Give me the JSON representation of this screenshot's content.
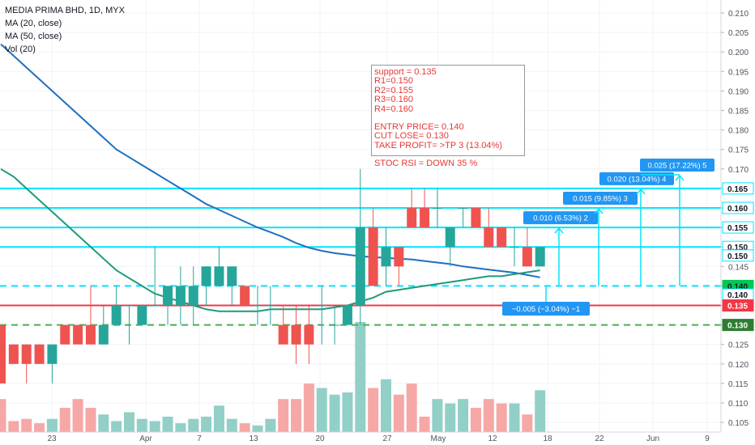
{
  "legend": {
    "title": "MEDIA PRIMA BHD, 1D, MYX",
    "ma20": "MA (20, close)",
    "ma50": "MA (50, close)",
    "vol": "Vol (20)"
  },
  "note": {
    "support": "support = 0.135",
    "r1": "R1=0.150",
    "r2": "R2=0.155",
    "r3": "R3=0.160",
    "r4": "R4=0.160",
    "entry": "ENTRY PRICE= 0.140",
    "cut": "CUT LOSE= 0.130",
    "take": "TAKE PROFIT= >TP 3 (13.04%)",
    "stoc": "STOC RSI = DOWN 35 %"
  },
  "colors": {
    "up": "#26a69a",
    "down": "#ef5350",
    "vol_up": "#92cfc7",
    "vol_down": "#f5a8a6",
    "ma20": "#1e9a7a",
    "ma50": "#1f6fbf",
    "resistance": "#00e5ff",
    "support": "#f23645",
    "stop": "#4caf50",
    "label_blue": "#2196f3"
  },
  "chart_data": {
    "type": "candlestick",
    "symbol": "MEDIA PRIMA BHD",
    "interval": "1D",
    "exchange": "MYX",
    "ylim": [
      0.1,
      0.212
    ],
    "y_ticks": [
      "0.105",
      "0.110",
      "0.115",
      "0.120",
      "0.125",
      "0.130",
      "0.135",
      "0.140",
      "0.145",
      "0.150",
      "0.155",
      "0.160",
      "0.165",
      "0.170",
      "0.175",
      "0.180",
      "0.185",
      "0.190",
      "0.195",
      "0.200",
      "0.205",
      "0.210"
    ],
    "x_ticks": [
      "23",
      "Apr",
      "7",
      "13",
      "20",
      "27",
      "May",
      "12",
      "18",
      "22",
      "Jun",
      "9"
    ],
    "candles": [
      {
        "o": 0.13,
        "h": 0.13,
        "l": 0.115,
        "c": 0.115
      },
      {
        "o": 0.125,
        "h": 0.125,
        "l": 0.12,
        "c": 0.12
      },
      {
        "o": 0.125,
        "h": 0.125,
        "l": 0.115,
        "c": 0.12
      },
      {
        "o": 0.125,
        "h": 0.125,
        "l": 0.12,
        "c": 0.12
      },
      {
        "o": 0.12,
        "h": 0.125,
        "l": 0.115,
        "c": 0.125
      },
      {
        "o": 0.13,
        "h": 0.13,
        "l": 0.125,
        "c": 0.125
      },
      {
        "o": 0.13,
        "h": 0.13,
        "l": 0.125,
        "c": 0.125
      },
      {
        "o": 0.13,
        "h": 0.14,
        "l": 0.125,
        "c": 0.125
      },
      {
        "o": 0.125,
        "h": 0.135,
        "l": 0.125,
        "c": 0.13
      },
      {
        "o": 0.13,
        "h": 0.14,
        "l": 0.13,
        "c": 0.135
      },
      {
        "o": 0.135,
        "h": 0.135,
        "l": 0.125,
        "c": 0.135
      },
      {
        "o": 0.13,
        "h": 0.135,
        "l": 0.13,
        "c": 0.135
      },
      {
        "o": 0.135,
        "h": 0.15,
        "l": 0.135,
        "c": 0.135
      },
      {
        "o": 0.135,
        "h": 0.14,
        "l": 0.13,
        "c": 0.14
      },
      {
        "o": 0.135,
        "h": 0.145,
        "l": 0.13,
        "c": 0.14
      },
      {
        "o": 0.135,
        "h": 0.145,
        "l": 0.13,
        "c": 0.14
      },
      {
        "o": 0.14,
        "h": 0.145,
        "l": 0.135,
        "c": 0.145
      },
      {
        "o": 0.14,
        "h": 0.15,
        "l": 0.14,
        "c": 0.145
      },
      {
        "o": 0.14,
        "h": 0.145,
        "l": 0.135,
        "c": 0.145
      },
      {
        "o": 0.14,
        "h": 0.14,
        "l": 0.135,
        "c": 0.135
      },
      {
        "o": 0.135,
        "h": 0.14,
        "l": 0.13,
        "c": 0.135
      },
      {
        "o": 0.135,
        "h": 0.14,
        "l": 0.13,
        "c": 0.135
      },
      {
        "o": 0.13,
        "h": 0.135,
        "l": 0.125,
        "c": 0.125
      },
      {
        "o": 0.13,
        "h": 0.135,
        "l": 0.12,
        "c": 0.125
      },
      {
        "o": 0.13,
        "h": 0.135,
        "l": 0.12,
        "c": 0.125
      },
      {
        "o": 0.135,
        "h": 0.14,
        "l": 0.125,
        "c": 0.135
      },
      {
        "o": 0.13,
        "h": 0.135,
        "l": 0.125,
        "c": 0.13
      },
      {
        "o": 0.13,
        "h": 0.135,
        "l": 0.13,
        "c": 0.135
      },
      {
        "o": 0.135,
        "h": 0.17,
        "l": 0.13,
        "c": 0.155
      },
      {
        "o": 0.155,
        "h": 0.16,
        "l": 0.14,
        "c": 0.14
      },
      {
        "o": 0.145,
        "h": 0.155,
        "l": 0.14,
        "c": 0.15
      },
      {
        "o": 0.15,
        "h": 0.15,
        "l": 0.14,
        "c": 0.145
      },
      {
        "o": 0.16,
        "h": 0.165,
        "l": 0.155,
        "c": 0.155
      },
      {
        "o": 0.16,
        "h": 0.165,
        "l": 0.155,
        "c": 0.155
      },
      {
        "o": 0.16,
        "h": 0.165,
        "l": 0.155,
        "c": 0.16
      },
      {
        "o": 0.15,
        "h": 0.155,
        "l": 0.145,
        "c": 0.155
      },
      {
        "o": 0.16,
        "h": 0.16,
        "l": 0.155,
        "c": 0.16
      },
      {
        "o": 0.16,
        "h": 0.16,
        "l": 0.155,
        "c": 0.155
      },
      {
        "o": 0.155,
        "h": 0.16,
        "l": 0.15,
        "c": 0.15
      },
      {
        "o": 0.155,
        "h": 0.155,
        "l": 0.15,
        "c": 0.15
      },
      {
        "o": 0.15,
        "h": 0.155,
        "l": 0.145,
        "c": 0.15
      },
      {
        "o": 0.15,
        "h": 0.155,
        "l": 0.145,
        "c": 0.145
      },
      {
        "o": 0.145,
        "h": 0.15,
        "l": 0.145,
        "c": 0.15
      }
    ],
    "volume_relative": [
      0.3,
      0.1,
      0.12,
      0.08,
      0.12,
      0.22,
      0.3,
      0.22,
      0.16,
      0.1,
      0.18,
      0.12,
      0.1,
      0.14,
      0.08,
      0.12,
      0.14,
      0.24,
      0.12,
      0.08,
      0.06,
      0.12,
      0.3,
      0.3,
      0.44,
      0.4,
      0.34,
      0.36,
      1.0,
      0.4,
      0.48,
      0.34,
      0.44,
      0.14,
      0.3,
      0.26,
      0.3,
      0.22,
      0.3,
      0.26,
      0.26,
      0.16,
      0.38
    ],
    "horizontal_lines": [
      {
        "price": 0.165,
        "style": "solid",
        "color": "resistance"
      },
      {
        "price": 0.16,
        "style": "solid",
        "color": "resistance"
      },
      {
        "price": 0.155,
        "style": "solid",
        "color": "resistance"
      },
      {
        "price": 0.15,
        "style": "solid",
        "color": "resistance"
      },
      {
        "price": 0.14,
        "style": "dashed",
        "color": "resistance"
      },
      {
        "price": 0.135,
        "style": "solid",
        "color": "support"
      },
      {
        "price": 0.13,
        "style": "dashed",
        "color": "stop"
      }
    ],
    "price_labels": [
      {
        "text": "0.165",
        "price": 0.165,
        "style": "outline"
      },
      {
        "text": "0.160",
        "price": 0.16,
        "style": "outline"
      },
      {
        "text": "0.155",
        "price": 0.155,
        "style": "outline"
      },
      {
        "text": "0.150",
        "price": 0.15,
        "style": "outline"
      },
      {
        "text": "0.150",
        "price": 0.1478,
        "style": "outline"
      },
      {
        "text": "0.140",
        "price": 0.14,
        "style": "green"
      },
      {
        "text": "0.140",
        "price": 0.1378,
        "style": "outline"
      },
      {
        "text": "0.135",
        "price": 0.135,
        "style": "red"
      },
      {
        "text": "0.130",
        "price": 0.13,
        "style": "dark"
      }
    ],
    "targets": [
      {
        "label": "0.010 (6.53%) 2",
        "price": 0.155
      },
      {
        "label": "0.015 (9.85%) 3",
        "price": 0.16
      },
      {
        "label": "0.020 (13.04%) 4",
        "price": 0.165
      },
      {
        "label": "0.025 (17.22%) 5",
        "price": 0.1685
      }
    ],
    "stop_label": "−0.005 (−3.04%) −1",
    "ma20": [
      0.17,
      0.168,
      0.165,
      0.162,
      0.159,
      0.156,
      0.153,
      0.15,
      0.147,
      0.144,
      0.142,
      0.14,
      0.138,
      0.137,
      0.136,
      0.135,
      0.134,
      0.1335,
      0.1335,
      0.1335,
      0.1335,
      0.134,
      0.134,
      0.134,
      0.134,
      0.134,
      0.1345,
      0.135,
      0.136,
      0.137,
      0.1385,
      0.139,
      0.1395,
      0.14,
      0.1405,
      0.141,
      0.1415,
      0.142,
      0.1425,
      0.1425,
      0.143,
      0.1435,
      0.144
    ],
    "ma50": [
      0.202,
      0.199,
      0.196,
      0.193,
      0.19,
      0.187,
      0.184,
      0.181,
      0.178,
      0.175,
      0.173,
      0.171,
      0.169,
      0.167,
      0.165,
      0.163,
      0.161,
      0.1595,
      0.158,
      0.1565,
      0.155,
      0.1538,
      0.1525,
      0.151,
      0.1498,
      0.149,
      0.1484,
      0.148,
      0.1476,
      0.1474,
      0.1472,
      0.147,
      0.1468,
      0.1464,
      0.146,
      0.1456,
      0.145,
      0.1446,
      0.1442,
      0.1438,
      0.1434,
      0.1428,
      0.1422
    ]
  }
}
